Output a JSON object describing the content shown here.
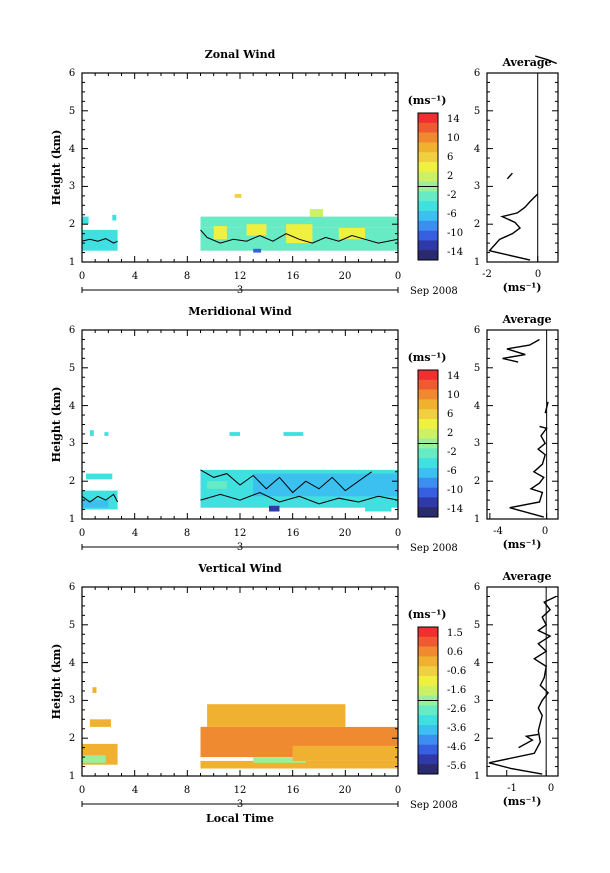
{
  "chart_data": [
    {
      "type": "heatmap",
      "title": "Zonal Wind",
      "ylabel": "Height (km)",
      "xlabel": "",
      "x_ticks": [
        "0",
        "4",
        "8",
        "12",
        "16",
        "20",
        "0"
      ],
      "y_ticks": [
        "1",
        "2",
        "3",
        "4",
        "5",
        "6"
      ],
      "xlim": [
        0,
        24
      ],
      "ylim": [
        1,
        6
      ],
      "date_day": "3",
      "date_month": "Sep 2008",
      "colorbar": {
        "unit": "(ms⁻¹)",
        "labels": [
          "14",
          "10",
          "6",
          "2",
          "-2",
          "-6",
          "-10",
          "-14"
        ],
        "range": [
          -14,
          14
        ]
      },
      "profile": {
        "title": "Average",
        "xlabel": "(ms⁻¹)",
        "x_ticks": [
          "-2",
          "0"
        ],
        "xlim": [
          -2,
          0.8
        ],
        "segments": [
          [
            [
              -0.3,
              1.05
            ],
            [
              -1.9,
              1.3
            ],
            [
              -1.7,
              1.45
            ],
            [
              -1.5,
              1.6
            ],
            [
              -1.0,
              1.75
            ],
            [
              -0.7,
              1.9
            ],
            [
              -0.9,
              2.05
            ],
            [
              -1.4,
              2.2
            ],
            [
              -0.8,
              2.3
            ],
            [
              -0.5,
              2.45
            ],
            [
              -0.3,
              2.6
            ],
            [
              0.0,
              2.8
            ]
          ],
          [
            [
              -1.2,
              3.2
            ],
            [
              -1.0,
              3.35
            ]
          ],
          [
            [
              -0.1,
              6.45
            ],
            [
              0.4,
              6.35
            ],
            [
              0.75,
              6.25
            ]
          ]
        ]
      },
      "cells": [
        {
          "t0": 0.0,
          "t1": 2.7,
          "h0": 1.3,
          "h1": 1.85,
          "v": -3
        },
        {
          "t0": 0.0,
          "t1": 0.5,
          "h0": 2.0,
          "h1": 2.2,
          "v": -3
        },
        {
          "t0": 2.3,
          "t1": 2.6,
          "h0": 2.1,
          "h1": 2.25,
          "v": -3
        },
        {
          "t0": 9.0,
          "t1": 24.0,
          "h0": 1.3,
          "h1": 1.9,
          "v": -2
        },
        {
          "t0": 9.0,
          "t1": 24.0,
          "h0": 1.9,
          "h1": 2.2,
          "v": -1
        },
        {
          "t0": 10.0,
          "t1": 11.0,
          "h0": 1.6,
          "h1": 1.95,
          "v": 3
        },
        {
          "t0": 12.5,
          "t1": 14.0,
          "h0": 1.7,
          "h1": 2.0,
          "v": 3
        },
        {
          "t0": 15.5,
          "t1": 17.5,
          "h0": 1.5,
          "h1": 2.0,
          "v": 4
        },
        {
          "t0": 19.5,
          "t1": 21.5,
          "h0": 1.6,
          "h1": 1.9,
          "v": 3
        },
        {
          "t0": 13.0,
          "t1": 13.6,
          "h0": 1.25,
          "h1": 1.35,
          "v": -9
        },
        {
          "t0": 17.3,
          "t1": 18.3,
          "h0": 2.2,
          "h1": 2.4,
          "v": 1
        },
        {
          "t0": 11.6,
          "t1": 12.1,
          "h0": 2.7,
          "h1": 2.8,
          "v": 5
        }
      ],
      "contours": [
        [
          [
            0.0,
            1.55
          ],
          [
            0.6,
            1.6
          ],
          [
            1.2,
            1.55
          ],
          [
            1.8,
            1.62
          ],
          [
            2.4,
            1.5
          ],
          [
            2.7,
            1.55
          ]
        ],
        [
          [
            9.0,
            1.85
          ],
          [
            9.5,
            1.65
          ],
          [
            10.5,
            1.5
          ],
          [
            11.5,
            1.6
          ],
          [
            12.5,
            1.55
          ],
          [
            13.5,
            1.7
          ],
          [
            14.5,
            1.55
          ],
          [
            15.5,
            1.75
          ],
          [
            16.5,
            1.6
          ],
          [
            17.5,
            1.5
          ],
          [
            18.5,
            1.65
          ],
          [
            19.5,
            1.55
          ],
          [
            20.5,
            1.7
          ],
          [
            21.5,
            1.6
          ],
          [
            22.5,
            1.5
          ],
          [
            24.0,
            1.6
          ]
        ]
      ]
    },
    {
      "type": "heatmap",
      "title": "Meridional Wind",
      "ylabel": "Height (km)",
      "xlabel": "",
      "x_ticks": [
        "0",
        "4",
        "8",
        "12",
        "16",
        "20",
        "0"
      ],
      "y_ticks": [
        "1",
        "2",
        "3",
        "4",
        "5",
        "6"
      ],
      "xlim": [
        0,
        24
      ],
      "ylim": [
        1,
        6
      ],
      "date_day": "3",
      "date_month": "Sep 2008",
      "colorbar": {
        "unit": "(ms⁻¹)",
        "labels": [
          "14",
          "10",
          "6",
          "2",
          "-2",
          "-6",
          "-10",
          "-14"
        ],
        "range": [
          -14,
          14
        ]
      },
      "profile": {
        "title": "Average",
        "xlabel": "(ms⁻¹)",
        "x_ticks": [
          "-4",
          "0"
        ],
        "xlim": [
          -4.2,
          0.8
        ],
        "segments": [
          [
            [
              -0.2,
              1.05
            ],
            [
              -2.6,
              1.3
            ],
            [
              -0.5,
              1.45
            ],
            [
              -0.3,
              1.7
            ],
            [
              -1.1,
              1.8
            ],
            [
              -0.5,
              1.95
            ],
            [
              -0.2,
              2.1
            ],
            [
              -0.9,
              2.25
            ],
            [
              -0.3,
              2.45
            ],
            [
              -0.1,
              2.7
            ],
            [
              -0.6,
              2.85
            ],
            [
              -0.1,
              3.0
            ],
            [
              -0.4,
              3.2
            ],
            [
              0.0,
              3.4
            ],
            [
              -0.5,
              3.45
            ]
          ],
          [
            [
              -0.1,
              3.8
            ],
            [
              0.1,
              4.1
            ]
          ],
          [
            [
              -2.0,
              5.15
            ],
            [
              -3.1,
              5.25
            ],
            [
              -1.5,
              5.35
            ],
            [
              -2.8,
              5.5
            ],
            [
              -1.2,
              5.6
            ],
            [
              -0.5,
              5.75
            ]
          ]
        ]
      },
      "cells": [
        {
          "t0": 0.0,
          "t1": 2.7,
          "h0": 1.25,
          "h1": 1.75,
          "v": -4
        },
        {
          "t0": 0.0,
          "t1": 2.0,
          "h0": 1.3,
          "h1": 1.5,
          "v": -6
        },
        {
          "t0": 0.3,
          "t1": 2.3,
          "h0": 2.05,
          "h1": 2.2,
          "v": -3
        },
        {
          "t0": 0.6,
          "t1": 0.9,
          "h0": 3.2,
          "h1": 3.35,
          "v": -3
        },
        {
          "t0": 1.7,
          "t1": 2.0,
          "h0": 3.2,
          "h1": 3.3,
          "v": -3
        },
        {
          "t0": 9.0,
          "t1": 24.0,
          "h0": 1.3,
          "h1": 2.3,
          "v": -3
        },
        {
          "t0": 13.0,
          "t1": 24.0,
          "h0": 1.6,
          "h1": 2.2,
          "v": -5
        },
        {
          "t0": 9.5,
          "t1": 11.0,
          "h0": 1.8,
          "h1": 2.0,
          "v": -1
        },
        {
          "t0": 14.2,
          "t1": 15.0,
          "h0": 1.2,
          "h1": 1.35,
          "v": -11
        },
        {
          "t0": 11.2,
          "t1": 12.0,
          "h0": 3.2,
          "h1": 3.3,
          "v": -3
        },
        {
          "t0": 15.3,
          "t1": 16.8,
          "h0": 3.2,
          "h1": 3.3,
          "v": -3
        },
        {
          "t0": 21.5,
          "t1": 23.5,
          "h0": 1.2,
          "h1": 1.35,
          "v": -4
        }
      ],
      "contours": [
        [
          [
            0.0,
            1.6
          ],
          [
            0.6,
            1.45
          ],
          [
            1.2,
            1.6
          ],
          [
            1.8,
            1.5
          ],
          [
            2.4,
            1.65
          ],
          [
            2.7,
            1.45
          ]
        ],
        [
          [
            9.0,
            2.3
          ],
          [
            10.0,
            2.1
          ],
          [
            11.0,
            2.2
          ],
          [
            12.0,
            1.9
          ],
          [
            13.0,
            2.15
          ],
          [
            14.0,
            1.8
          ],
          [
            15.0,
            2.1
          ],
          [
            16.0,
            1.7
          ],
          [
            17.0,
            2.0
          ],
          [
            18.0,
            1.8
          ],
          [
            19.0,
            2.1
          ],
          [
            20.0,
            1.75
          ],
          [
            21.0,
            2.0
          ],
          [
            22.0,
            2.25
          ]
        ],
        [
          [
            9.0,
            1.5
          ],
          [
            10.5,
            1.65
          ],
          [
            12.0,
            1.5
          ],
          [
            13.5,
            1.7
          ],
          [
            15.0,
            1.45
          ],
          [
            16.5,
            1.6
          ],
          [
            18.0,
            1.4
          ],
          [
            19.5,
            1.55
          ],
          [
            21.0,
            1.45
          ],
          [
            22.5,
            1.6
          ],
          [
            24.0,
            1.5
          ]
        ]
      ]
    },
    {
      "type": "heatmap",
      "title": "Vertical Wind",
      "ylabel": "Height (km)",
      "xlabel": "Local Time",
      "x_ticks": [
        "0",
        "4",
        "8",
        "12",
        "16",
        "20",
        "0"
      ],
      "y_ticks": [
        "1",
        "2",
        "3",
        "4",
        "5",
        "6"
      ],
      "xlim": [
        0,
        24
      ],
      "ylim": [
        1,
        6
      ],
      "date_day": "3",
      "date_month": "Sep 2008",
      "colorbar": {
        "unit": "(ms⁻¹)",
        "labels": [
          "1.5",
          "0.6",
          "-0.6",
          "-1.6",
          "-2.6",
          "-3.6",
          "-4.6",
          "-5.6"
        ],
        "range": [
          -6,
          2
        ]
      },
      "profile": {
        "title": "Average",
        "xlabel": "(ms⁻¹)",
        "x_ticks": [
          "-1",
          "0"
        ],
        "xlim": [
          -1.5,
          0.3
        ],
        "segments": [
          [
            [
              -0.1,
              1.05
            ],
            [
              -0.9,
              1.2
            ],
            [
              -1.45,
              1.35
            ],
            [
              -0.3,
              1.6
            ],
            [
              -0.15,
              1.9
            ],
            [
              -0.2,
              2.2
            ],
            [
              -0.1,
              2.6
            ],
            [
              -0.2,
              2.8
            ],
            [
              -0.1,
              3.0
            ],
            [
              0.05,
              3.2
            ],
            [
              -0.15,
              3.4
            ],
            [
              -0.05,
              3.6
            ],
            [
              0.0,
              3.9
            ],
            [
              -0.3,
              4.1
            ],
            [
              0.0,
              4.3
            ],
            [
              -0.2,
              4.5
            ],
            [
              0.1,
              4.7
            ],
            [
              -0.2,
              4.85
            ],
            [
              0.0,
              5.0
            ],
            [
              -0.1,
              5.2
            ],
            [
              0.1,
              5.4
            ],
            [
              -0.05,
              5.6
            ],
            [
              0.25,
              5.75
            ]
          ],
          [
            [
              -0.2,
              2.1
            ],
            [
              -0.5,
              2.05
            ],
            [
              -0.35,
              1.95
            ],
            [
              -0.7,
              1.75
            ]
          ]
        ]
      },
      "cells": [
        {
          "t0": 0.0,
          "t1": 2.7,
          "h0": 1.3,
          "h1": 1.85,
          "v": 0.2
        },
        {
          "t0": 0.0,
          "t1": 1.8,
          "h0": 1.35,
          "h1": 1.55,
          "v": -1.8
        },
        {
          "t0": 0.6,
          "t1": 2.2,
          "h0": 2.3,
          "h1": 2.5,
          "v": 0.0
        },
        {
          "t0": 0.8,
          "t1": 1.1,
          "h0": 3.2,
          "h1": 3.35,
          "v": 0.0
        },
        {
          "t0": 9.0,
          "t1": 24.0,
          "h0": 1.5,
          "h1": 2.3,
          "v": 0.5
        },
        {
          "t0": 9.0,
          "t1": 20.0,
          "h0": 2.0,
          "h1": 2.3,
          "v": 0.8
        },
        {
          "t0": 9.0,
          "t1": 24.0,
          "h0": 1.2,
          "h1": 1.4,
          "v": 0.0
        },
        {
          "t0": 13.0,
          "t1": 17.0,
          "h0": 1.35,
          "h1": 1.5,
          "v": -2.2
        },
        {
          "t0": 9.5,
          "t1": 20.0,
          "h0": 2.3,
          "h1": 2.9,
          "v": 0.0
        },
        {
          "t0": 16.0,
          "t1": 24.0,
          "h0": 1.4,
          "h1": 1.8,
          "v": 0.2
        }
      ],
      "contours": []
    }
  ]
}
